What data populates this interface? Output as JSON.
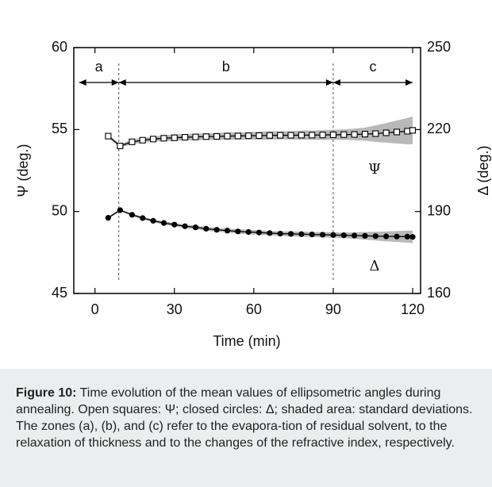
{
  "chart_data": {
    "type": "line",
    "xlabel": "Time (min)",
    "ylabel_left": "Ψ (deg.)",
    "ylabel_right": "Δ (deg.)",
    "xlim": [
      -8,
      123
    ],
    "ylim_left": [
      45,
      60
    ],
    "ylim_right": [
      160,
      250
    ],
    "xticks": [
      0,
      30,
      60,
      90,
      120
    ],
    "yticks_left": [
      45,
      50,
      55,
      60
    ],
    "yticks_right": [
      160,
      190,
      220,
      250
    ],
    "zone_boundaries": [
      9,
      90
    ],
    "zones": [
      {
        "label": "a",
        "from": -6,
        "to": 9
      },
      {
        "label": "b",
        "from": 9,
        "to": 90
      },
      {
        "label": "c",
        "from": 90,
        "to": 120
      }
    ],
    "series": [
      {
        "name": "Ψ",
        "axis": "left",
        "marker": "open-square",
        "x": [
          5,
          9.5,
          14,
          18,
          22,
          26,
          30,
          34,
          38,
          42,
          46,
          50,
          54,
          58,
          62,
          66,
          70,
          74,
          78,
          82,
          86,
          90,
          94,
          98,
          102,
          106,
          110,
          114,
          118,
          120
        ],
        "y": [
          54.6,
          54.0,
          54.25,
          54.35,
          54.42,
          54.47,
          54.5,
          54.53,
          54.55,
          54.57,
          54.58,
          54.6,
          54.61,
          54.62,
          54.63,
          54.64,
          54.65,
          54.65,
          54.66,
          54.66,
          54.67,
          54.68,
          54.69,
          54.7,
          54.72,
          54.75,
          54.8,
          54.85,
          54.9,
          54.95
        ],
        "std": [
          0.1,
          0.1,
          0.15,
          0.15,
          0.15,
          0.18,
          0.2,
          0.2,
          0.2,
          0.2,
          0.22,
          0.22,
          0.22,
          0.22,
          0.25,
          0.25,
          0.25,
          0.25,
          0.28,
          0.28,
          0.3,
          0.3,
          0.32,
          0.35,
          0.4,
          0.5,
          0.6,
          0.7,
          0.8,
          0.85
        ]
      },
      {
        "name": "Δ",
        "axis": "right",
        "marker": "filled-circle",
        "x": [
          5,
          9.5,
          14,
          18,
          22,
          26,
          30,
          34,
          38,
          42,
          46,
          50,
          54,
          58,
          62,
          66,
          70,
          74,
          78,
          82,
          86,
          90,
          94,
          98,
          102,
          106,
          110,
          114,
          118,
          120
        ],
        "y": [
          187.7,
          190.5,
          188.8,
          187.6,
          186.6,
          185.8,
          185.2,
          184.6,
          184.2,
          183.7,
          183.3,
          183.0,
          182.7,
          182.5,
          182.3,
          182.1,
          181.9,
          181.8,
          181.7,
          181.6,
          181.5,
          181.4,
          181.3,
          181.2,
          181.1,
          181.0,
          180.9,
          180.85,
          180.8,
          180.7
        ],
        "std": [
          0.4,
          0.4,
          0.5,
          0.5,
          0.5,
          0.6,
          0.6,
          0.6,
          0.7,
          0.7,
          0.7,
          0.7,
          0.8,
          0.8,
          0.8,
          0.8,
          0.8,
          0.9,
          0.9,
          0.9,
          1.0,
          1.0,
          1.0,
          1.2,
          1.4,
          1.6,
          1.8,
          2.0,
          2.2,
          2.3
        ]
      }
    ],
    "annotations": [
      "Ψ",
      "Δ"
    ]
  },
  "caption": {
    "label": "Figure 10:",
    "text": "Time evolution of the mean values of ellipsometric angles during annealing. Open squares: Ψ; closed circles: Δ; shaded area: standard deviations. The zones (a), (b), and (c) refer to the evapora-tion of residual solvent, to the relaxation of thickness and to the changes of the refractive index, respectively."
  }
}
